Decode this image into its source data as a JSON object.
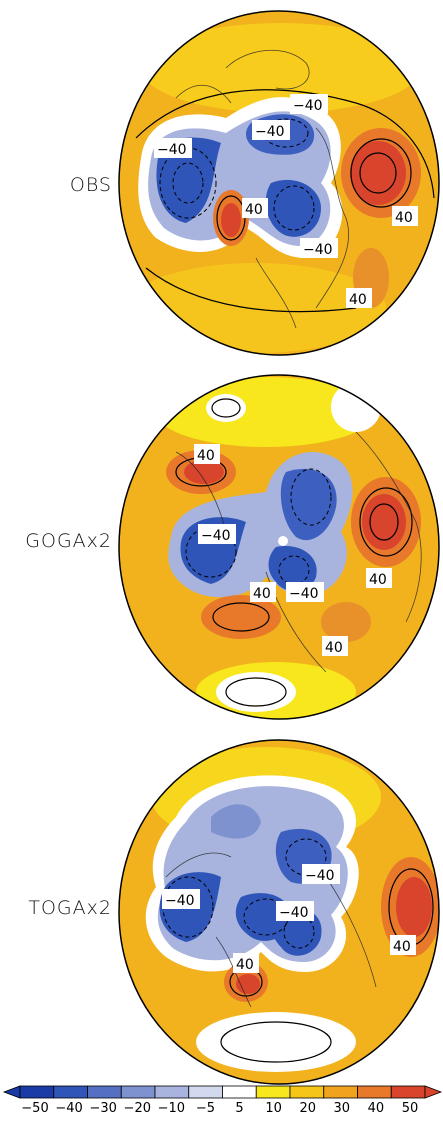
{
  "panels": [
    {
      "label": "OBS",
      "contour_labels": [
        "−40",
        "−40",
        "−40",
        "40",
        "−40",
        "40",
        "40"
      ]
    },
    {
      "label": "GOGAx2",
      "contour_labels": [
        "40",
        "−40",
        "40",
        "−40",
        "40",
        "40"
      ]
    },
    {
      "label": "TOGAx2",
      "contour_labels": [
        "−40",
        "−40",
        "−40",
        "40",
        "40"
      ]
    }
  ],
  "colorbar": {
    "labels": [
      "−50",
      "−40",
      "−30",
      "−20",
      "−10",
      "−5",
      "5",
      "10",
      "20",
      "30",
      "40",
      "50"
    ],
    "colors": [
      "#1a3aa6",
      "#2f55b8",
      "#5570c2",
      "#7e92cf",
      "#a8b4de",
      "#d2d9ee",
      "#ffffff",
      "#f8e71c",
      "#f5c518",
      "#f0a31e",
      "#e8782a",
      "#d8452c"
    ]
  }
}
